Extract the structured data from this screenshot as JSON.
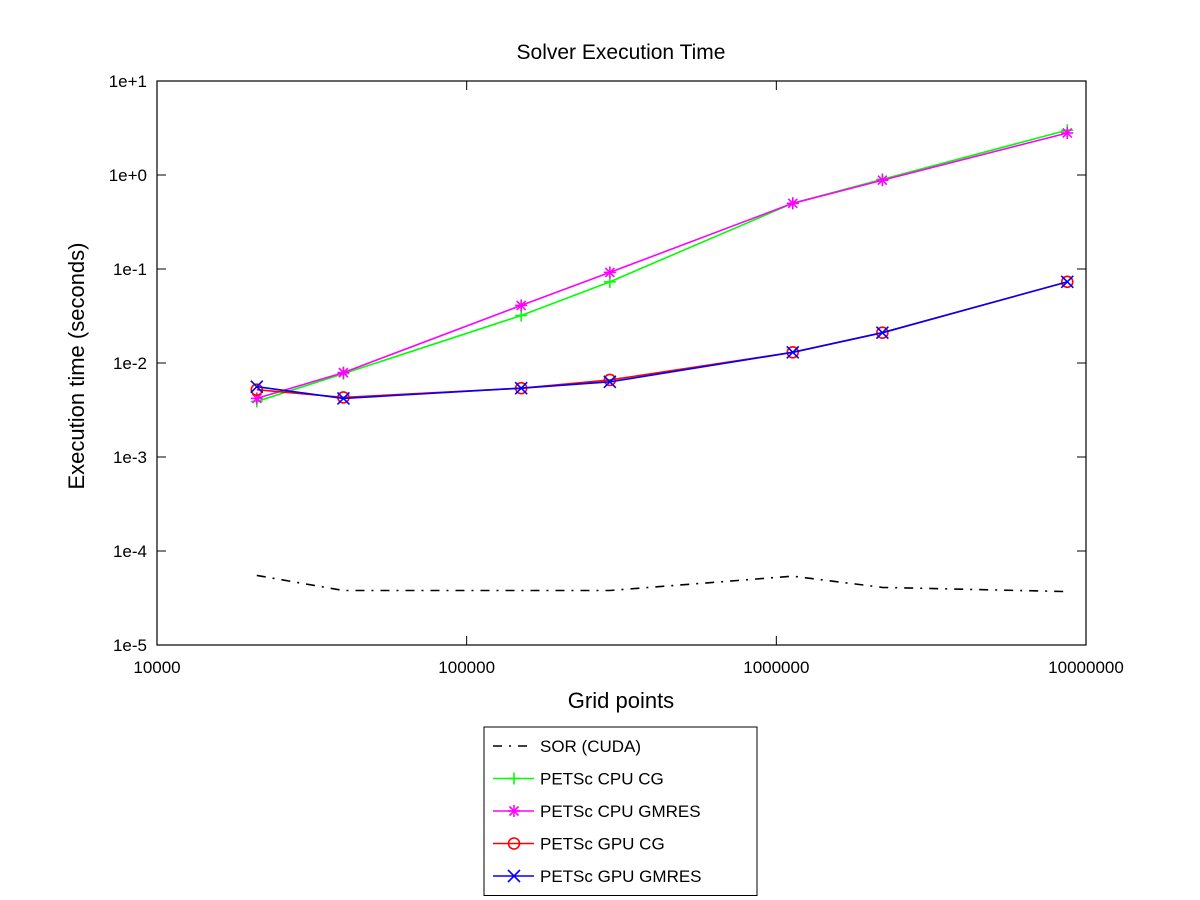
{
  "chart_data": {
    "type": "line",
    "title": "Solver Execution Time",
    "xlabel": "Grid points",
    "ylabel": "Execution time (seconds)",
    "xscale": "log",
    "yscale": "log",
    "xlim": [
      10000,
      10000000
    ],
    "ylim": [
      1e-05,
      10
    ],
    "x_ticks": [
      10000,
      100000,
      1000000,
      10000000
    ],
    "x_tick_labels": [
      "10000",
      "100000",
      "1000000",
      "10000000"
    ],
    "y_ticks": [
      1e-05,
      0.0001,
      0.001,
      0.01,
      0.1,
      1,
      10
    ],
    "y_tick_labels": [
      "1e-5",
      "1e-4",
      "1e-3",
      "1e-2",
      "1e-1",
      "1e+0",
      "1e+1"
    ],
    "grid": false,
    "legend_position": "below",
    "series": [
      {
        "name": "SOR (CUDA)",
        "color": "#000000",
        "style": "dashdot",
        "marker": "none",
        "x": [
          21000,
          40000,
          150000,
          290000,
          1130000,
          2200000,
          8700000
        ],
        "y": [
          5.5e-05,
          3.8e-05,
          3.8e-05,
          3.8e-05,
          5.4e-05,
          4.1e-05,
          3.7e-05
        ]
      },
      {
        "name": "PETSc CPU CG",
        "color": "#00ff00",
        "style": "solid",
        "marker": "plus",
        "x": [
          21000,
          40000,
          150000,
          290000,
          1130000,
          2200000,
          8700000
        ],
        "y": [
          0.0039,
          0.0077,
          0.032,
          0.073,
          0.5,
          0.9,
          3.0
        ]
      },
      {
        "name": "PETSc CPU GMRES",
        "color": "#ff00ff",
        "style": "solid",
        "marker": "asterisk",
        "x": [
          21000,
          40000,
          150000,
          290000,
          1130000,
          2200000,
          8700000
        ],
        "y": [
          0.0042,
          0.0079,
          0.041,
          0.092,
          0.5,
          0.88,
          2.8
        ]
      },
      {
        "name": "PETSc GPU CG",
        "color": "#ff0000",
        "style": "solid",
        "marker": "circle",
        "x": [
          21000,
          40000,
          150000,
          290000,
          1130000,
          2200000,
          8700000
        ],
        "y": [
          0.0052,
          0.0043,
          0.0054,
          0.0066,
          0.013,
          0.021,
          0.073
        ]
      },
      {
        "name": "PETSc GPU GMRES",
        "color": "#0000ff",
        "style": "solid",
        "marker": "x",
        "x": [
          21000,
          40000,
          150000,
          290000,
          1130000,
          2200000,
          8700000
        ],
        "y": [
          0.0056,
          0.0042,
          0.0054,
          0.0063,
          0.013,
          0.021,
          0.073
        ]
      }
    ]
  }
}
